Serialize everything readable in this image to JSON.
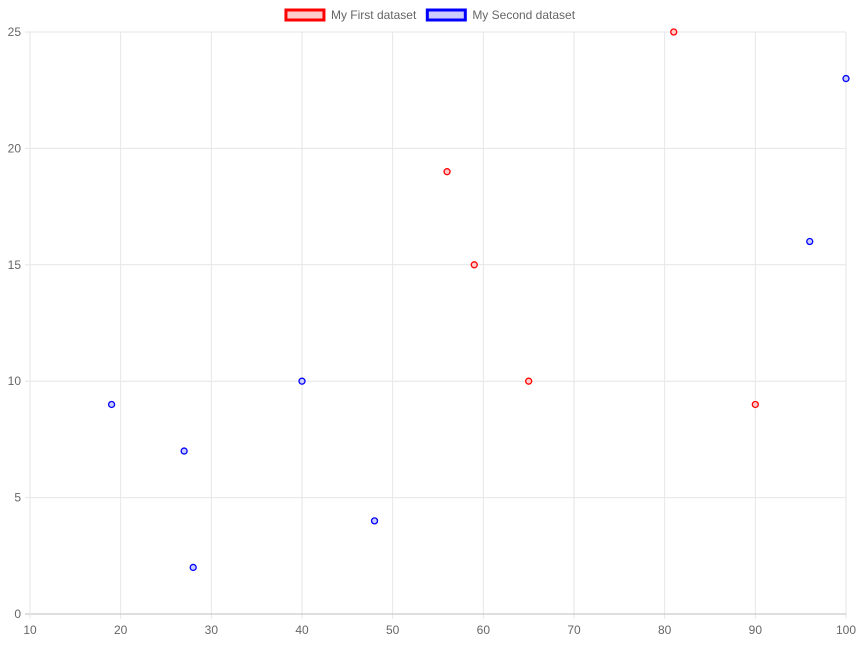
{
  "chart_data": {
    "type": "scatter",
    "title": "",
    "xlabel": "",
    "ylabel": "",
    "xlim": [
      10,
      100
    ],
    "ylim": [
      0,
      25
    ],
    "xticks": [
      10,
      20,
      30,
      40,
      50,
      60,
      70,
      80,
      90,
      100
    ],
    "yticks": [
      0,
      5,
      10,
      15,
      20,
      25
    ],
    "grid": true,
    "legend_position": "top-center",
    "series": [
      {
        "name": "My First dataset",
        "border_color": "#ff0000",
        "fill_color": "#ffcccc",
        "points": [
          {
            "x": 56,
            "y": 19
          },
          {
            "x": 59,
            "y": 15
          },
          {
            "x": 65,
            "y": 10
          },
          {
            "x": 81,
            "y": 25
          },
          {
            "x": 90,
            "y": 9
          }
        ]
      },
      {
        "name": "My Second dataset",
        "border_color": "#0000ff",
        "fill_color": "#ccccff",
        "points": [
          {
            "x": 19,
            "y": 9
          },
          {
            "x": 27,
            "y": 7
          },
          {
            "x": 28,
            "y": 2
          },
          {
            "x": 40,
            "y": 10
          },
          {
            "x": 48,
            "y": 4
          },
          {
            "x": 96,
            "y": 16
          },
          {
            "x": 100,
            "y": 23
          }
        ]
      }
    ]
  }
}
